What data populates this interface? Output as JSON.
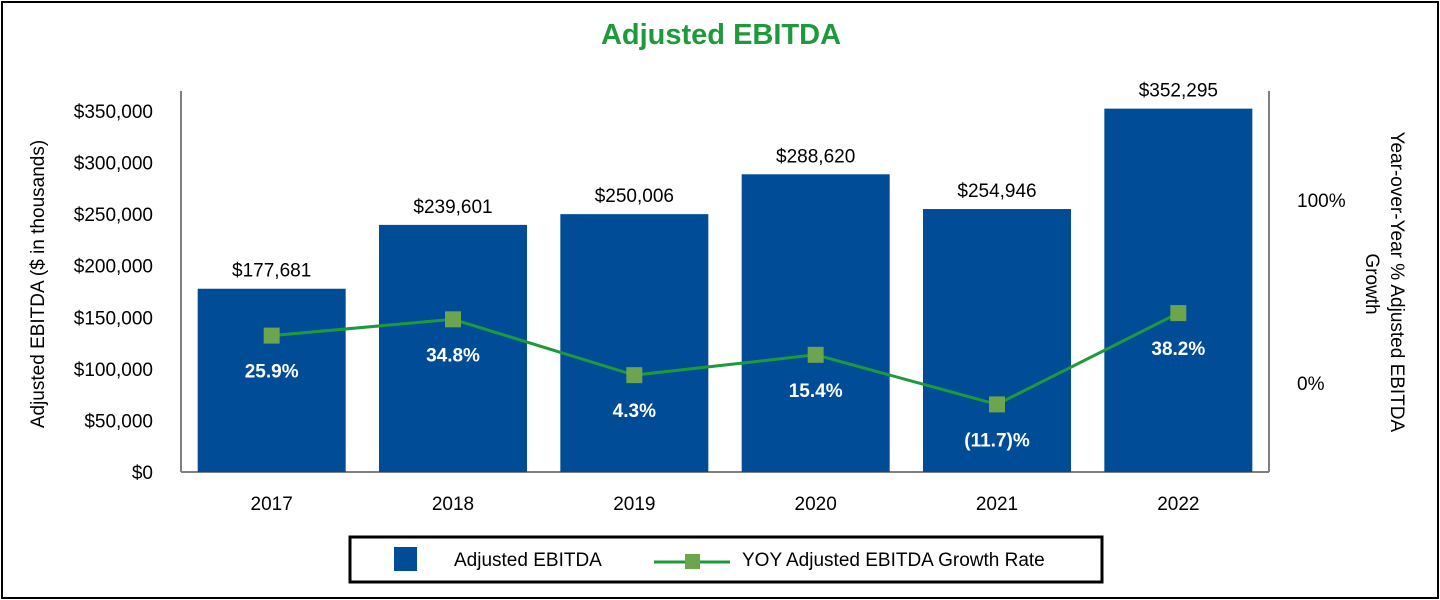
{
  "chart_data": {
    "type": "bar",
    "title": "Adjusted EBITDA",
    "categories": [
      "2017",
      "2018",
      "2019",
      "2020",
      "2021",
      "2022"
    ],
    "series": [
      {
        "name": "Adjusted EBITDA",
        "kind": "bar",
        "axis": "left",
        "values": [
          177681,
          239601,
          250006,
          288620,
          254946,
          352295
        ],
        "labels": [
          "$177,681",
          "$239,601",
          "$250,006",
          "$288,620",
          "$254,946",
          "$352,295"
        ]
      },
      {
        "name": "YOY Adjusted EBITDA Growth Rate",
        "kind": "line",
        "axis": "right",
        "values": [
          25.9,
          34.8,
          4.3,
          15.4,
          -11.7,
          38.2
        ],
        "labels": [
          "25.9%",
          "34.8%",
          "4.3%",
          "15.4%",
          "(11.7)%",
          "38.2%"
        ]
      }
    ],
    "ylabel": "Adjusted EBITDA ($ in thousands)",
    "ylabel_right": "Year-over-Year % Adjusted EBITDA Growth",
    "ylim": [
      0,
      350000
    ],
    "yticks": [
      0,
      50000,
      100000,
      150000,
      200000,
      250000,
      300000,
      350000
    ],
    "ytick_labels": [
      "$0",
      "$50,000",
      "$100,000",
      "$150,000",
      "$200,000",
      "$250,000",
      "$300,000",
      "$350,000"
    ],
    "ylim_right": [
      -50,
      150
    ],
    "yticks_right": [
      0,
      100
    ],
    "ytick_labels_right": [
      "0%",
      "100%"
    ],
    "grid": false,
    "legend_position": "bottom-center",
    "colors": {
      "bar": "#004C97",
      "line": "#1E9A3C",
      "marker": "#6DA54F",
      "title": "#1E9A3C",
      "axis": "#808080"
    }
  }
}
